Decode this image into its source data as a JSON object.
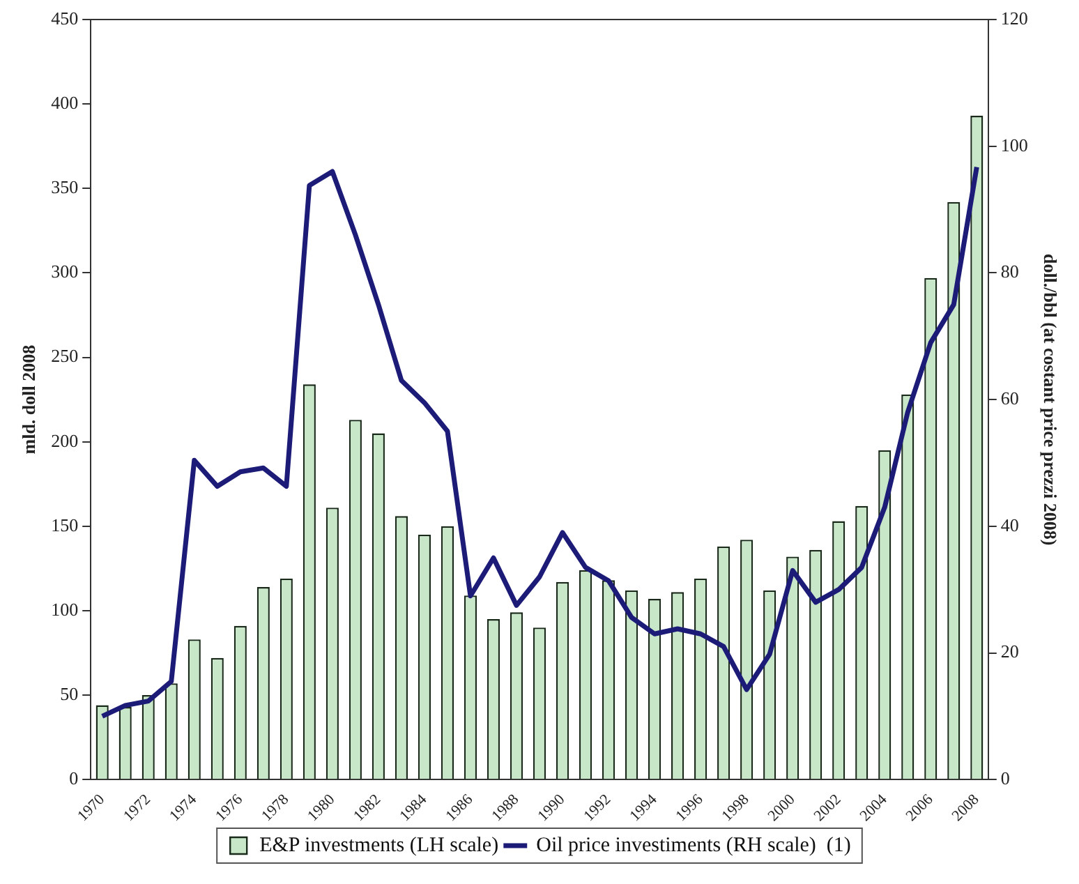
{
  "chart_data": {
    "type": "bar",
    "categories": [
      "1970",
      null,
      "1972",
      null,
      "1974",
      null,
      "1976",
      null,
      "1978",
      null,
      "1980",
      null,
      "1982",
      null,
      "1984",
      null,
      "1986",
      null,
      "1988",
      null,
      "1990",
      null,
      "1992",
      null,
      "1994",
      null,
      "1996",
      null,
      "1998",
      null,
      "2000",
      null,
      "2002",
      null,
      "2004",
      null,
      "2006",
      null,
      "2008"
    ],
    "series": [
      {
        "name": "E&P investments (LH scale)",
        "color": "#c8e6c8",
        "values": [
          44,
          43,
          50,
          57,
          83,
          72,
          91,
          114,
          119,
          234,
          161,
          213,
          205,
          156,
          145,
          150,
          109,
          95,
          99,
          90,
          117,
          124,
          118,
          112,
          107,
          111,
          119,
          138,
          142,
          112,
          132,
          136,
          153,
          162,
          195,
          228,
          297,
          342,
          393
        ]
      },
      {
        "name": "Oil price investiments (RH scale)  (1)",
        "type": "line",
        "axis": "y2",
        "color": "#1c1c78",
        "values": [
          10,
          11.7,
          12.4,
          15.5,
          50.4,
          46.3,
          48.6,
          49.2,
          46.3,
          93.8,
          96,
          86,
          75,
          63,
          59.5,
          55,
          29,
          35,
          27.5,
          32,
          39,
          33.5,
          31.4,
          25.6,
          23,
          23.8,
          23,
          21,
          14.2,
          19.8,
          33,
          28,
          30,
          33.5,
          43,
          58,
          69,
          75,
          96.7
        ]
      }
    ],
    "ylabel": "mld. doll 2008",
    "y2label": "doll./bbl (at costant price prezzi 2008)",
    "ylim": [
      0,
      450
    ],
    "yticks": [
      0,
      50,
      100,
      150,
      200,
      250,
      300,
      350,
      400,
      450
    ],
    "y2lim": [
      0,
      120
    ],
    "y2ticks": [
      0,
      20,
      40,
      60,
      80,
      100,
      120
    ],
    "grid": false,
    "legend": "bottom",
    "marker": "none",
    "line_style": "solid"
  }
}
